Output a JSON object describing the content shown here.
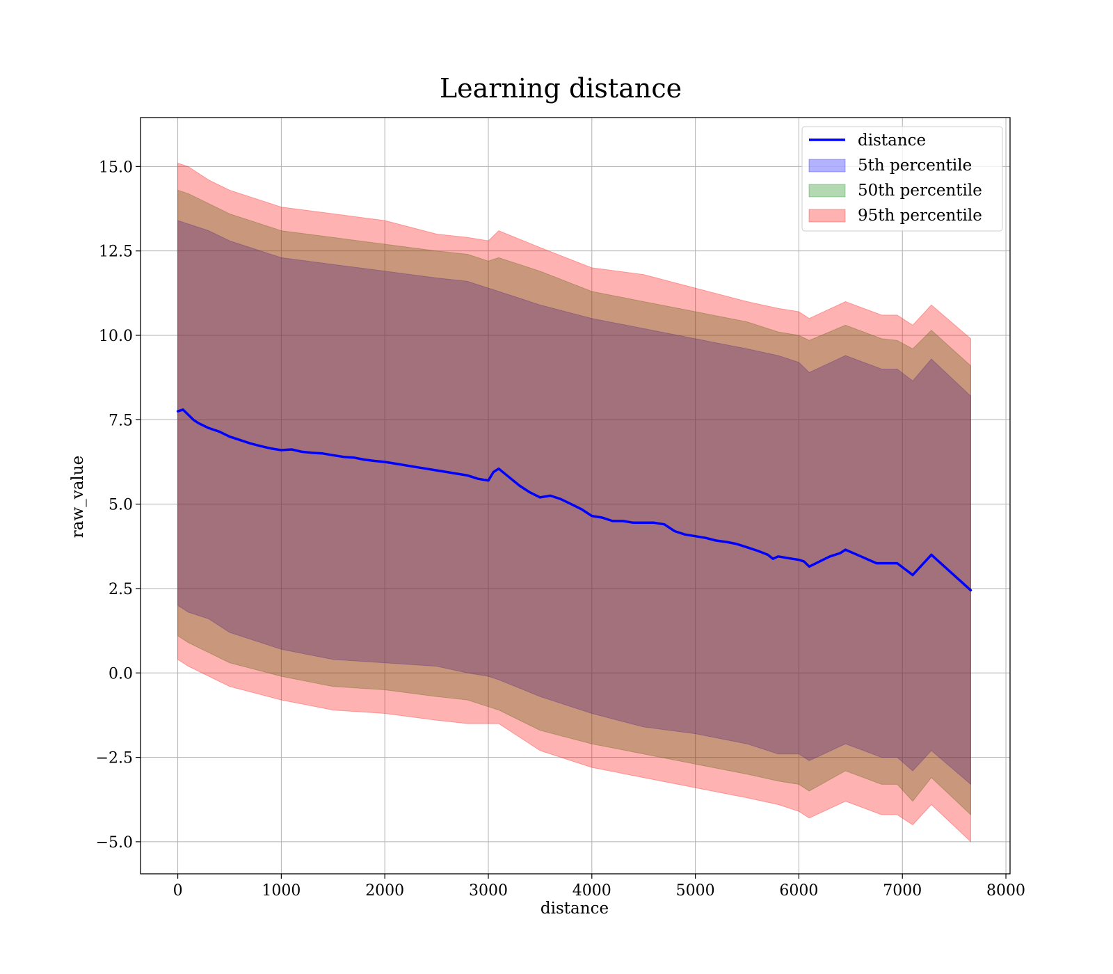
{
  "chart_data": {
    "type": "area",
    "title": "Learning distance",
    "xlabel": "distance",
    "ylabel": "raw_value",
    "xlim": [
      -360,
      8040
    ],
    "ylim": [
      -5.95,
      16.45
    ],
    "xticks": [
      0,
      1000,
      2000,
      3000,
      4000,
      5000,
      6000,
      7000,
      8000
    ],
    "xtick_labels": [
      "0",
      "1000",
      "2000",
      "3000",
      "4000",
      "5000",
      "6000",
      "7000",
      "8000"
    ],
    "yticks": [
      -5.0,
      -2.5,
      0.0,
      2.5,
      5.0,
      7.5,
      10.0,
      12.5,
      15.0
    ],
    "ytick_labels": [
      "−5.0",
      "−2.5",
      "0.0",
      "2.5",
      "5.0",
      "7.5",
      "10.0",
      "12.5",
      "15.0"
    ],
    "grid": true,
    "legend_position": "top-right",
    "colors": {
      "line": "#0000ff",
      "band_5": "#0000ff",
      "band_50": "#008000",
      "band_95": "#ff0000"
    },
    "line": {
      "name": "distance",
      "x": [
        0,
        50,
        100,
        150,
        200,
        300,
        400,
        500,
        600,
        700,
        800,
        900,
        1000,
        1100,
        1200,
        1300,
        1400,
        1500,
        1600,
        1700,
        1800,
        1900,
        2000,
        2100,
        2200,
        2300,
        2400,
        2500,
        2600,
        2700,
        2800,
        2900,
        3000,
        3050,
        3100,
        3200,
        3300,
        3400,
        3500,
        3600,
        3700,
        3800,
        3900,
        4000,
        4100,
        4200,
        4300,
        4400,
        4500,
        4600,
        4700,
        4800,
        4900,
        5000,
        5100,
        5200,
        5300,
        5400,
        5500,
        5600,
        5700,
        5750,
        5800,
        5900,
        6000,
        6050,
        6100,
        6200,
        6300,
        6400,
        6450,
        6600,
        6750,
        6950,
        7100,
        7280,
        7660
      ],
      "y": [
        7.75,
        7.8,
        7.65,
        7.5,
        7.4,
        7.25,
        7.15,
        7.0,
        6.9,
        6.8,
        6.72,
        6.65,
        6.6,
        6.62,
        6.55,
        6.52,
        6.5,
        6.45,
        6.4,
        6.38,
        6.32,
        6.28,
        6.25,
        6.2,
        6.15,
        6.1,
        6.05,
        6.0,
        5.95,
        5.9,
        5.85,
        5.75,
        5.7,
        5.95,
        6.05,
        5.8,
        5.55,
        5.35,
        5.2,
        5.25,
        5.15,
        5.0,
        4.85,
        4.65,
        4.6,
        4.5,
        4.5,
        4.45,
        4.45,
        4.45,
        4.4,
        4.2,
        4.1,
        4.05,
        4.0,
        3.92,
        3.88,
        3.82,
        3.72,
        3.62,
        3.5,
        3.38,
        3.45,
        3.4,
        3.35,
        3.3,
        3.15,
        3.3,
        3.45,
        3.55,
        3.65,
        3.45,
        3.25,
        3.25,
        2.9,
        3.5,
        2.45
      ]
    },
    "bands": [
      {
        "name": "5th percentile",
        "x": [
          0,
          100,
          300,
          500,
          1000,
          1500,
          2000,
          2500,
          2800,
          3000,
          3100,
          3500,
          4000,
          4500,
          5000,
          5500,
          5800,
          6000,
          6100,
          6450,
          6800,
          6950,
          7100,
          7280,
          7660
        ],
        "upper": [
          13.4,
          13.3,
          13.1,
          12.8,
          12.3,
          12.1,
          11.9,
          11.7,
          11.6,
          11.4,
          11.3,
          10.9,
          10.5,
          10.2,
          9.9,
          9.6,
          9.4,
          9.2,
          8.9,
          9.4,
          9.0,
          9.0,
          8.65,
          9.3,
          8.2
        ],
        "lower": [
          2.0,
          1.8,
          1.6,
          1.2,
          0.7,
          0.4,
          0.3,
          0.2,
          0.0,
          -0.1,
          -0.2,
          -0.7,
          -1.2,
          -1.6,
          -1.8,
          -2.1,
          -2.4,
          -2.4,
          -2.6,
          -2.1,
          -2.5,
          -2.5,
          -2.9,
          -2.3,
          -3.3
        ]
      },
      {
        "name": "50th percentile",
        "x": [
          0,
          100,
          300,
          500,
          1000,
          1500,
          2000,
          2500,
          2800,
          3000,
          3100,
          3500,
          4000,
          4500,
          5000,
          5500,
          5800,
          6000,
          6100,
          6450,
          6800,
          6950,
          7100,
          7280,
          7660
        ],
        "upper": [
          14.3,
          14.2,
          13.9,
          13.6,
          13.1,
          12.9,
          12.7,
          12.5,
          12.4,
          12.2,
          12.3,
          11.9,
          11.3,
          11.0,
          10.7,
          10.4,
          10.1,
          10.0,
          9.85,
          10.3,
          9.9,
          9.85,
          9.6,
          10.15,
          9.1
        ],
        "lower": [
          1.1,
          0.9,
          0.6,
          0.3,
          -0.1,
          -0.4,
          -0.5,
          -0.7,
          -0.8,
          -1.0,
          -1.1,
          -1.7,
          -2.1,
          -2.4,
          -2.7,
          -3.0,
          -3.2,
          -3.3,
          -3.5,
          -2.9,
          -3.3,
          -3.3,
          -3.8,
          -3.1,
          -4.2
        ]
      },
      {
        "name": "95th percentile",
        "x": [
          0,
          100,
          300,
          500,
          1000,
          1500,
          2000,
          2500,
          2800,
          3000,
          3100,
          3500,
          4000,
          4500,
          5000,
          5500,
          5800,
          6000,
          6100,
          6450,
          6800,
          6950,
          7100,
          7280,
          7660
        ],
        "upper": [
          15.1,
          15.0,
          14.6,
          14.3,
          13.8,
          13.6,
          13.4,
          13.0,
          12.9,
          12.8,
          13.1,
          12.6,
          12.0,
          11.8,
          11.4,
          11.0,
          10.8,
          10.7,
          10.5,
          11.0,
          10.6,
          10.6,
          10.3,
          10.9,
          9.9
        ],
        "lower": [
          0.4,
          0.2,
          -0.1,
          -0.4,
          -0.8,
          -1.1,
          -1.2,
          -1.4,
          -1.5,
          -1.5,
          -1.5,
          -2.3,
          -2.8,
          -3.1,
          -3.4,
          -3.7,
          -3.9,
          -4.1,
          -4.3,
          -3.8,
          -4.2,
          -4.2,
          -4.5,
          -3.9,
          -5.0
        ]
      }
    ],
    "legend": [
      "distance",
      "5th percentile",
      "50th percentile",
      "95th percentile"
    ]
  }
}
